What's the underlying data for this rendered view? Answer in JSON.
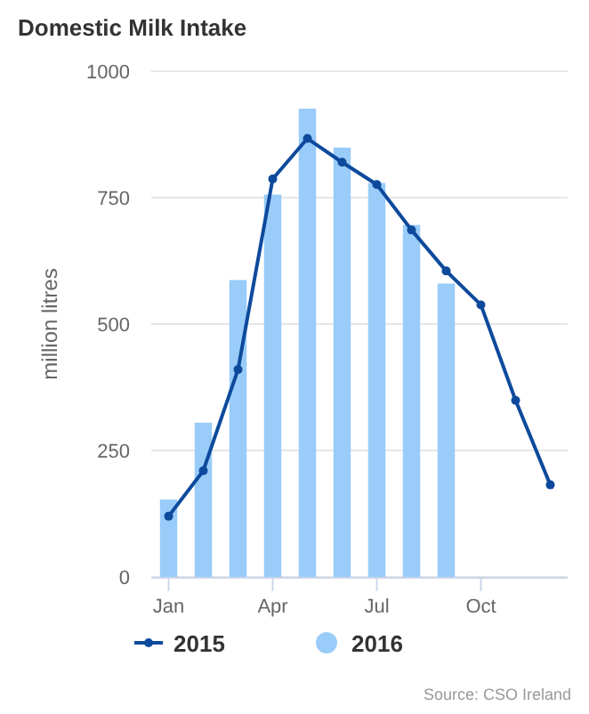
{
  "chart_data": {
    "type": "bar",
    "title": "Domestic Milk Intake",
    "ylabel": "million litres",
    "categories": [
      "Jan",
      null,
      null,
      "Apr",
      null,
      null,
      "Jul",
      null,
      null,
      "Oct",
      null,
      null
    ],
    "series": [
      {
        "name": "2015",
        "type": "line",
        "color": "#0d4a9c",
        "marker": "circle",
        "values": [
          120,
          210,
          410,
          787,
          867,
          820,
          776,
          686,
          605,
          538,
          349,
          182
        ]
      },
      {
        "name": "2016",
        "color": "#99ccf9",
        "values": [
          153,
          305,
          587,
          756,
          926,
          849,
          779,
          696,
          580,
          null,
          null,
          null
        ]
      }
    ],
    "ylim": [
      0,
      1000
    ],
    "yticks": [
      0,
      250,
      500,
      750,
      1000
    ],
    "grid": "y",
    "legend": "bottom",
    "annotations": [
      "Source: CSO Ireland"
    ]
  }
}
